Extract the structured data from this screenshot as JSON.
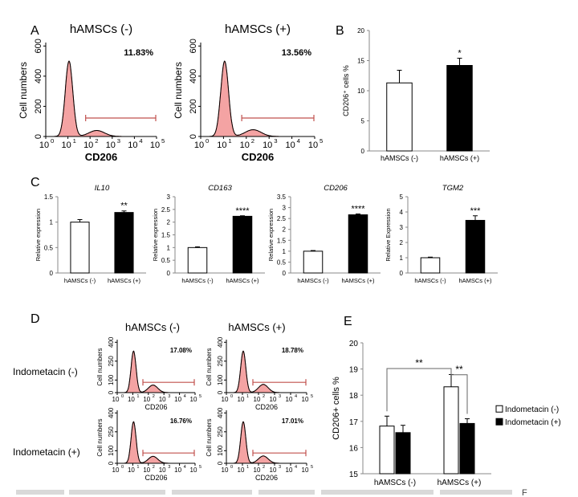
{
  "panel_letters": [
    "A",
    "B",
    "C",
    "D",
    "E"
  ],
  "footer_fragment": "F",
  "colors": {
    "hist_fill": "#f4a3a3",
    "hist_line": "#c0504d",
    "gate": "#c0504d",
    "bar_black": "#000000",
    "bar_white": "#ffffff"
  },
  "chart_data": [
    {
      "id": "A1",
      "type": "histogram",
      "title": "hAMSCs (-)",
      "percent": "11.83%",
      "xlabel": "CD206",
      "ylabel": "Cell numbers",
      "xscale": "log",
      "xlim": [
        1,
        100000
      ],
      "x_ticks": [
        "10",
        "10",
        "10",
        "10",
        "10",
        "10"
      ],
      "x_tick_exp": [
        "0",
        "1",
        "2",
        "3",
        "4",
        "5"
      ],
      "y_ticks": [
        "0",
        "200",
        "400",
        "600"
      ],
      "ylim": [
        0,
        600
      ],
      "peaks": [
        {
          "center_log": 1.05,
          "height": 500,
          "width_log": 0.17
        },
        {
          "center_log": 2.3,
          "height": 40,
          "width_log": 0.35
        }
      ],
      "gate_log": [
        1.8,
        5
      ]
    },
    {
      "id": "A2",
      "type": "histogram",
      "title": "hAMSCs (+)",
      "percent": "13.56%",
      "xlabel": "CD206",
      "ylabel": "Cell numbers",
      "xscale": "log",
      "xlim": [
        1,
        100000
      ],
      "x_ticks": [
        "10",
        "10",
        "10",
        "10",
        "10",
        "10"
      ],
      "x_tick_exp": [
        "0",
        "1",
        "2",
        "3",
        "4",
        "5"
      ],
      "y_ticks": [
        "0",
        "200",
        "400",
        "600"
      ],
      "ylim": [
        0,
        600
      ],
      "peaks": [
        {
          "center_log": 1.05,
          "height": 500,
          "width_log": 0.17
        },
        {
          "center_log": 2.3,
          "height": 45,
          "width_log": 0.35
        }
      ],
      "gate_log": [
        1.8,
        5
      ]
    },
    {
      "id": "B",
      "type": "bar",
      "categories": [
        "hAMSCs (-)",
        "hAMSCs (+)"
      ],
      "values": [
        11.3,
        14.2
      ],
      "errors": [
        2.1,
        1.2
      ],
      "ylim": [
        0,
        20
      ],
      "y_ticks": [
        "0",
        "5",
        "10",
        "15",
        "20"
      ],
      "ylabel": "CD206⁺ cells %",
      "significance": [
        "",
        "*"
      ],
      "fills": [
        "#ffffff",
        "#000000"
      ]
    },
    {
      "id": "C1",
      "type": "bar",
      "title": "IL10",
      "categories": [
        "hAMSCs (-)",
        "hAMSCs (+)"
      ],
      "values": [
        1.0,
        1.19
      ],
      "errors": [
        0.05,
        0.03
      ],
      "ylim": [
        0,
        1.5
      ],
      "y_ticks": [
        "0",
        "0.5",
        "1",
        "1.5"
      ],
      "ylabel": "Relative expression",
      "significance": [
        "",
        "**"
      ],
      "fills": [
        "#ffffff",
        "#000000"
      ]
    },
    {
      "id": "C2",
      "type": "bar",
      "title": "CD163",
      "categories": [
        "hAMSCs (-)",
        "hAMSCs (+)"
      ],
      "values": [
        1.0,
        2.23
      ],
      "errors": [
        0.03,
        0.02
      ],
      "ylim": [
        0,
        3
      ],
      "y_ticks": [
        "0",
        "0.5",
        "1",
        "1.5",
        "2",
        "2.5",
        "3"
      ],
      "ylabel": "Relative expression",
      "significance": [
        "",
        "****"
      ],
      "fills": [
        "#ffffff",
        "#000000"
      ]
    },
    {
      "id": "C3",
      "type": "bar",
      "title": "CD206",
      "categories": [
        "hAMSCs (-)",
        "hAMSCs (+)"
      ],
      "values": [
        1.0,
        2.67
      ],
      "errors": [
        0.03,
        0.04
      ],
      "ylim": [
        0,
        3.5
      ],
      "y_ticks": [
        "0",
        "0.5",
        "1",
        "1.5",
        "2",
        "2.5",
        "3",
        "3.5"
      ],
      "ylabel": "Relative expression",
      "significance": [
        "",
        "****"
      ],
      "fills": [
        "#ffffff",
        "#000000"
      ]
    },
    {
      "id": "C4",
      "type": "bar",
      "title": "TGM2",
      "categories": [
        "hAMSCs (-)",
        "hAMSCs (+)"
      ],
      "values": [
        1.0,
        3.45
      ],
      "errors": [
        0.04,
        0.3
      ],
      "ylim": [
        0,
        5
      ],
      "y_ticks": [
        "0",
        "1",
        "2",
        "3",
        "4",
        "5"
      ],
      "ylabel": "Relative Expression",
      "significance": [
        "",
        "***"
      ],
      "fills": [
        "#ffffff",
        "#000000"
      ]
    },
    {
      "id": "D1",
      "type": "histogram",
      "percent": "17.08%",
      "xlabel": "CD206",
      "ylabel": "Cell numbers",
      "xscale": "log",
      "xlim": [
        1,
        100000
      ],
      "x_ticks": [
        "10",
        "10",
        "10",
        "10",
        "10",
        "10"
      ],
      "x_tick_exp": [
        "0",
        "1",
        "2",
        "3",
        "4",
        "5"
      ],
      "y_ticks": [
        "0",
        "100",
        "250",
        "400"
      ],
      "ylim": [
        0,
        400
      ],
      "peaks": [
        {
          "center_log": 1.05,
          "height": 330,
          "width_log": 0.16
        },
        {
          "center_log": 2.3,
          "height": 60,
          "width_log": 0.3
        }
      ],
      "gate_log": [
        1.65,
        5
      ]
    },
    {
      "id": "D2",
      "type": "histogram",
      "percent": "18.78%",
      "xlabel": "CD206",
      "ylabel": "Cell numbers",
      "xscale": "log",
      "xlim": [
        1,
        100000
      ],
      "x_ticks": [
        "10",
        "10",
        "10",
        "10",
        "10",
        "10"
      ],
      "x_tick_exp": [
        "0",
        "1",
        "2",
        "3",
        "4",
        "5"
      ],
      "y_ticks": [
        "0",
        "100",
        "250",
        "400"
      ],
      "ylim": [
        0,
        400
      ],
      "peaks": [
        {
          "center_log": 1.05,
          "height": 330,
          "width_log": 0.16
        },
        {
          "center_log": 2.3,
          "height": 65,
          "width_log": 0.3
        }
      ],
      "gate_log": [
        1.65,
        5
      ]
    },
    {
      "id": "D3",
      "type": "histogram",
      "percent": "16.76%",
      "xlabel": "CD206",
      "ylabel": "Cell numbers",
      "xscale": "log",
      "xlim": [
        1,
        100000
      ],
      "x_ticks": [
        "10",
        "10",
        "10",
        "10",
        "10",
        "10"
      ],
      "x_tick_exp": [
        "0",
        "1",
        "2",
        "3",
        "4",
        "5"
      ],
      "y_ticks": [
        "0",
        "100",
        "250",
        "400"
      ],
      "ylim": [
        0,
        400
      ],
      "peaks": [
        {
          "center_log": 1.05,
          "height": 330,
          "width_log": 0.16
        },
        {
          "center_log": 2.3,
          "height": 55,
          "width_log": 0.3
        }
      ],
      "gate_log": [
        1.65,
        5
      ]
    },
    {
      "id": "D4",
      "type": "histogram",
      "percent": "17.01%",
      "xlabel": "CD206",
      "ylabel": "Cell numbers",
      "xscale": "log",
      "xlim": [
        1,
        100000
      ],
      "x_ticks": [
        "10",
        "10",
        "10",
        "10",
        "10",
        "10"
      ],
      "x_tick_exp": [
        "0",
        "1",
        "2",
        "3",
        "4",
        "5"
      ],
      "y_ticks": [
        "0",
        "100",
        "250",
        "400"
      ],
      "ylim": [
        0,
        400
      ],
      "peaks": [
        {
          "center_log": 1.05,
          "height": 330,
          "width_log": 0.16
        },
        {
          "center_log": 2.3,
          "height": 58,
          "width_log": 0.3
        }
      ],
      "gate_log": [
        1.65,
        5
      ]
    },
    {
      "id": "E",
      "type": "bar",
      "categories": [
        "hAMSCs (-)",
        "hAMSCs (+)"
      ],
      "series": [
        {
          "name": "Indometacin (-)",
          "values": [
            16.82,
            18.32
          ],
          "errors": [
            0.38,
            0.47
          ],
          "fill": "#ffffff"
        },
        {
          "name": "Indometacin (+)",
          "values": [
            16.57,
            16.92
          ],
          "errors": [
            0.28,
            0.18
          ],
          "fill": "#000000"
        }
      ],
      "ylim": [
        15,
        20
      ],
      "y_ticks": [
        "15",
        "16",
        "17",
        "18",
        "19",
        "20"
      ],
      "ylabel": "CD206+ cells %",
      "legend_position": "right",
      "significance_brackets": [
        {
          "label": "**"
        },
        {
          "label": "**"
        }
      ]
    }
  ],
  "panel_D_labels": {
    "columns": [
      "hAMSCs (-)",
      "hAMSCs (+)"
    ],
    "rows": [
      "Indometacin (-)",
      "Indometacin (+)"
    ]
  }
}
